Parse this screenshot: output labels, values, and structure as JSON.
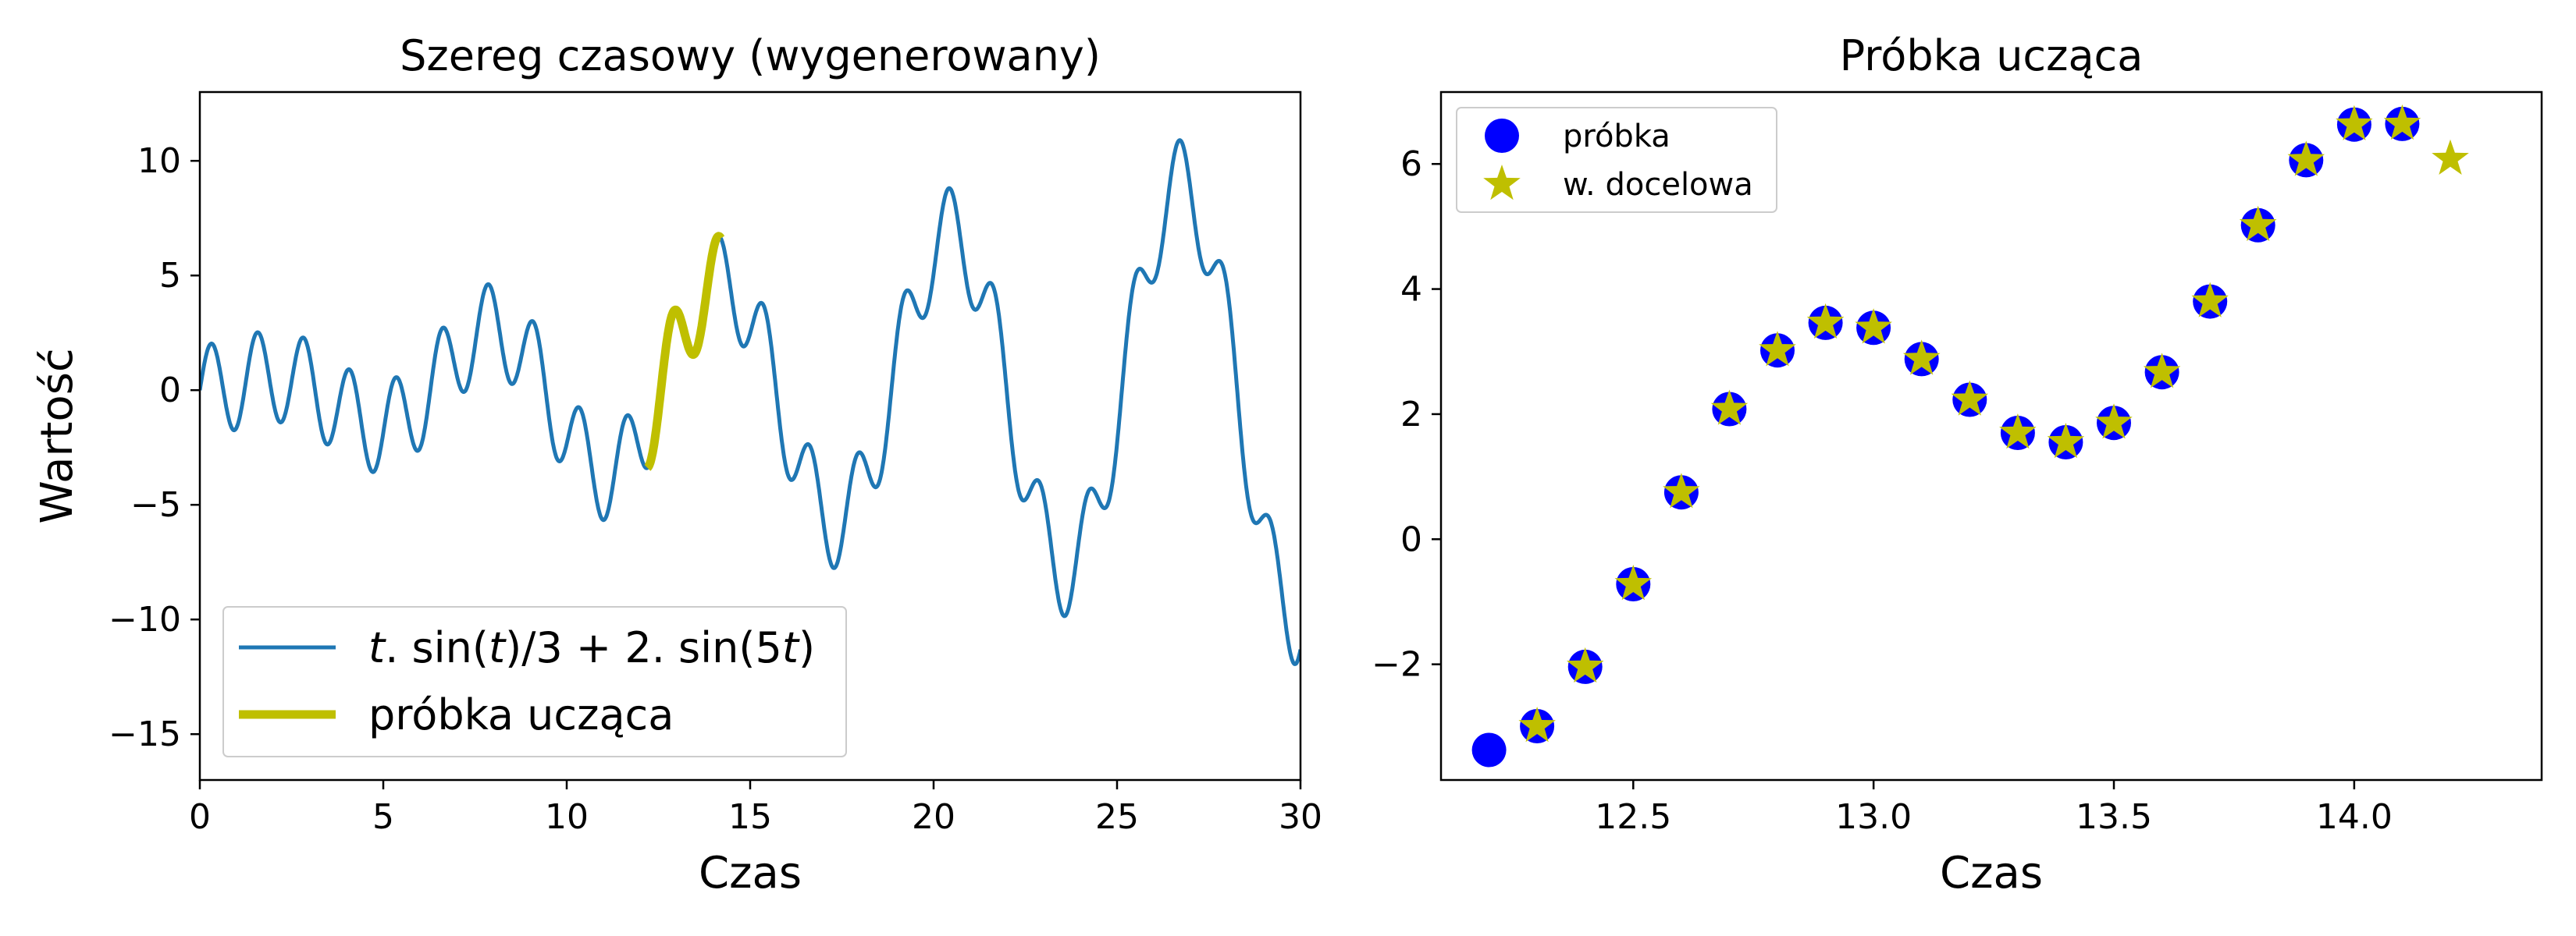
{
  "chart_data": [
    {
      "type": "line",
      "title": "Szereg czasowy (wygenerowany)",
      "xlabel": "Czas",
      "ylabel": "Wartość",
      "xlim": [
        0,
        30
      ],
      "ylim": [
        -17,
        13
      ],
      "xticks": [
        0,
        5,
        10,
        15,
        20,
        25,
        30
      ],
      "xtick_labels": [
        "0",
        "5",
        "10",
        "15",
        "20",
        "25",
        "30"
      ],
      "yticks": [
        -15,
        -10,
        -5,
        0,
        5,
        10
      ],
      "ytick_labels": [
        "−15",
        "−10",
        "−5",
        "0",
        "5",
        "10"
      ],
      "legend_position": "lower-left",
      "series": [
        {
          "name": "t. sin(t)/3 + 2. sin(5t)",
          "legend_prefix": "t",
          "legend_mid1": ". sin(",
          "legend_t1": "t",
          "legend_mid2": ")/3 + 2. sin(5",
          "legend_t2": "t",
          "legend_suffix": ")",
          "color": "#1f77b4",
          "x_range": [
            0,
            30
          ],
          "function": "t*sin(t)/3 + 2*sin(5t)"
        },
        {
          "name": "próbka ucząca",
          "color": "#bfbf00",
          "x_range": [
            12.2,
            14.2
          ],
          "function": "t*sin(t)/3 + 2*sin(5t)"
        }
      ]
    },
    {
      "type": "scatter",
      "title": "Próbka ucząca",
      "xlabel": "Czas",
      "xlim": [
        12.1,
        14.39
      ],
      "ylim": [
        -3.85,
        7.15
      ],
      "xticks": [
        12.5,
        13.0,
        13.5,
        14.0
      ],
      "xtick_labels": [
        "12.5",
        "13.0",
        "13.5",
        "14.0"
      ],
      "yticks": [
        -2,
        0,
        2,
        4,
        6
      ],
      "ytick_labels": [
        "−2",
        "0",
        "2",
        "4",
        "6"
      ],
      "legend_position": "upper-left",
      "series": [
        {
          "name": "próbka",
          "marker": "circle",
          "color": "#0000ff",
          "x": [
            12.2,
            12.3,
            12.4,
            12.5,
            12.6,
            12.7,
            12.8,
            12.9,
            13.0,
            13.1,
            13.2,
            13.3,
            13.4,
            13.5,
            13.6,
            13.7,
            13.8,
            13.9,
            14.0,
            14.1
          ],
          "y": [
            -3.37,
            -2.99,
            -2.04,
            -0.72,
            0.75,
            2.08,
            3.02,
            3.46,
            3.38,
            2.88,
            2.23,
            1.7,
            1.55,
            1.86,
            2.67,
            3.8,
            5.02,
            6.06,
            6.63,
            6.64
          ]
        },
        {
          "name": "w. docelowa",
          "marker": "star",
          "color": "#bfbf00",
          "x": [
            12.3,
            12.4,
            12.5,
            12.6,
            12.7,
            12.8,
            12.9,
            13.0,
            13.1,
            13.2,
            13.3,
            13.4,
            13.5,
            13.6,
            13.7,
            13.8,
            13.9,
            14.0,
            14.1,
            14.2
          ],
          "y": [
            -2.99,
            -2.04,
            -0.72,
            0.75,
            2.08,
            3.02,
            3.46,
            3.38,
            2.88,
            2.23,
            1.7,
            1.55,
            1.86,
            2.67,
            3.8,
            5.02,
            6.06,
            6.63,
            6.64,
            6.08
          ]
        }
      ]
    }
  ]
}
